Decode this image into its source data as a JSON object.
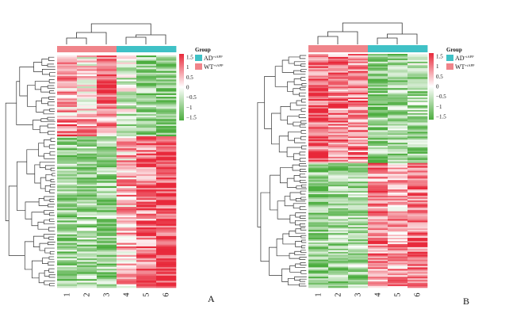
{
  "chart_data": [
    {
      "type": "heatmap",
      "panel_label": "A",
      "columns": [
        "1",
        "2",
        "3",
        "4",
        "5",
        "6"
      ],
      "groups": [
        "WT+tAPP",
        "WT+tAPP",
        "WT+tAPP",
        "AD+tAPP",
        "AD+tAPP",
        "AD+tAPP"
      ],
      "legend": {
        "title": "Group",
        "entries": [
          {
            "label": "AD",
            "superscript": "+tAPP",
            "color": "#3fc1c6"
          },
          {
            "label": "WT",
            "superscript": "+tAPP",
            "color": "#f0848a"
          }
        ]
      },
      "colorbar": {
        "ticks": [
          "1.5",
          "1",
          "0.5",
          "0",
          "−0.5",
          "−1",
          "−1.5"
        ],
        "range": [
          -1.5,
          1.5
        ],
        "colors": {
          "high": "#e8283a",
          "mid": "#ffffff",
          "low": "#4cad3f"
        }
      },
      "row_clusters": [
        {
          "rows": 35,
          "means": [
            0.6,
            0.1,
            1.2,
            -0.4,
            -0.9,
            -1.0
          ]
        },
        {
          "rows": 12,
          "means": [
            0.8,
            0.9,
            0.6,
            -0.8,
            -1.0,
            -1.1
          ]
        },
        {
          "rows": 88,
          "means": [
            -0.9,
            -0.7,
            -0.8,
            0.5,
            0.9,
            1.3
          ]
        }
      ]
    },
    {
      "type": "heatmap",
      "panel_label": "B",
      "columns": [
        "1",
        "2",
        "3",
        "4",
        "5",
        "6"
      ],
      "groups": [
        "WT+tAPP",
        "WT+tAPP",
        "WT+tAPP",
        "AD+tAPP",
        "AD+tAPP",
        "AD+tAPP"
      ],
      "legend": {
        "title": "Group",
        "entries": [
          {
            "label": "AD",
            "superscript": "+tAPP",
            "color": "#3fc1c6"
          },
          {
            "label": "WT",
            "superscript": "+tAPP",
            "color": "#f0848a"
          }
        ]
      },
      "colorbar": {
        "ticks": [
          "1.5",
          "1",
          "0.5",
          "0",
          "−0.5",
          "−1",
          "−1.5"
        ],
        "range": [
          -1.5,
          1.5
        ],
        "colors": {
          "high": "#e8283a",
          "mid": "#ffffff",
          "low": "#4cad3f"
        }
      },
      "row_clusters": [
        {
          "rows": 70,
          "means": [
            1.1,
            0.9,
            0.8,
            -0.9,
            -0.8,
            -0.7
          ]
        },
        {
          "rows": 80,
          "means": [
            -0.9,
            -0.8,
            -0.7,
            0.8,
            0.6,
            1.0
          ]
        }
      ]
    }
  ]
}
